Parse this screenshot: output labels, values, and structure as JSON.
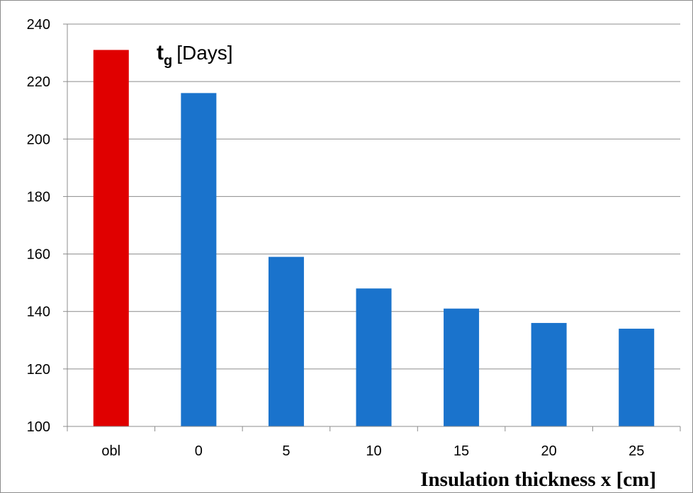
{
  "chart_data": {
    "type": "bar",
    "title": {
      "symbol": "t",
      "subscript": "g",
      "unit": "[Days]"
    },
    "xlabel": "Insulation thickness x [cm]",
    "ylabel": "",
    "ylim": [
      100,
      240
    ],
    "yticks": [
      100,
      120,
      140,
      160,
      180,
      200,
      220,
      240
    ],
    "categories": [
      "obl",
      "0",
      "5",
      "10",
      "15",
      "20",
      "25"
    ],
    "values": [
      231,
      216,
      159,
      148,
      141,
      136,
      134
    ],
    "bar_colors": [
      "#e00000",
      "#1a73cc",
      "#1a73cc",
      "#1a73cc",
      "#1a73cc",
      "#1a73cc",
      "#1a73cc"
    ],
    "grid": true,
    "legend": "none"
  }
}
